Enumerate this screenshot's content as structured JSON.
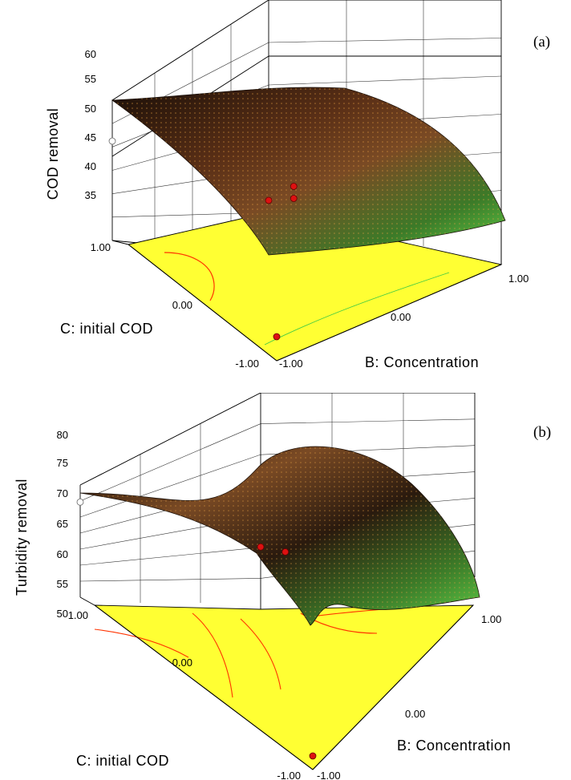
{
  "charts": [
    {
      "panel_label": "(a)",
      "zlabel": "COD removal",
      "xlabel": "B: Concentration",
      "ylabel": "C: initial COD",
      "z_ticks": [
        "60",
        "55",
        "50",
        "45",
        "40",
        "35"
      ],
      "x_ticks": [
        "-1.00",
        "0.00",
        "1.00"
      ],
      "y_ticks": [
        "1.00",
        "0.00",
        "-1.00"
      ]
    },
    {
      "panel_label": "(b)",
      "zlabel": "Turbidity removal",
      "xlabel": "B: Concentration",
      "ylabel": "C: initial COD",
      "z_ticks": [
        "80",
        "75",
        "70",
        "65",
        "60",
        "55",
        "50"
      ],
      "x_ticks": [
        "-1.00",
        "0.00",
        "1.00"
      ],
      "y_ticks": [
        "1.00",
        "0.00",
        "-1.00"
      ]
    }
  ],
  "chart_data": [
    {
      "type": "surface",
      "x_var": "B: Concentration",
      "y_var": "C: initial COD",
      "z_var": "COD removal",
      "xlim": [
        -1,
        1
      ],
      "ylim": [
        -1,
        1
      ],
      "zlim": [
        30,
        60
      ],
      "x": [
        -1.0,
        -0.5,
        0.0,
        0.5,
        1.0
      ],
      "y": [
        -1.0,
        -0.5,
        0.0,
        0.5,
        1.0
      ],
      "z": [
        [
          51.5,
          51.0,
          50.5,
          49.5,
          48.5
        ],
        [
          49.5,
          49.0,
          48.5,
          47.5,
          46.0
        ],
        [
          46.5,
          45.5,
          45.0,
          44.0,
          42.5
        ],
        [
          41.5,
          41.0,
          40.5,
          39.5,
          38.0
        ],
        [
          36.0,
          35.5,
          35.0,
          34.0,
          32.5
        ]
      ],
      "design_points": [
        {
          "x": -1,
          "y": 1,
          "z": 51.5
        },
        {
          "x": 0,
          "y": 0,
          "z": 47.5
        },
        {
          "x": 0,
          "y": 0,
          "z": 45.0
        },
        {
          "x": 1,
          "y": 1,
          "z": 32.5
        },
        {
          "x": -1,
          "y": -1,
          "z": 35.0
        }
      ],
      "grid": true,
      "floor_color": "#ffff33",
      "contour_color": "#ff3300",
      "surface_colors": [
        "#1a0f08",
        "#8a4a26",
        "#3c7a28",
        "#5fd24a"
      ]
    },
    {
      "type": "surface",
      "x_var": "B: Concentration",
      "y_var": "C: initial COD",
      "z_var": "Turbidity removal",
      "xlim": [
        -1,
        1
      ],
      "ylim": [
        -1,
        1
      ],
      "zlim": [
        45,
        80
      ],
      "x": [
        -1.0,
        -0.5,
        0.0,
        0.5,
        1.0
      ],
      "y": [
        -1.0,
        -0.5,
        0.0,
        0.5,
        1.0
      ],
      "z": [
        [
          71.5,
          68.0,
          65.5,
          69.0,
          76.0
        ],
        [
          69.0,
          66.0,
          64.0,
          67.5,
          74.5
        ],
        [
          65.0,
          63.0,
          62.5,
          65.5,
          71.5
        ],
        [
          60.0,
          57.5,
          55.0,
          59.0,
          65.5
        ],
        [
          54.0,
          51.0,
          48.5,
          53.0,
          61.0
        ]
      ],
      "design_points": [
        {
          "x": -1,
          "y": 1,
          "z": 71.5
        },
        {
          "x": 0,
          "y": 0,
          "z": 69.5
        },
        {
          "x": 1,
          "y": 1,
          "z": 61.0
        },
        {
          "x": -1,
          "y": -1,
          "z": 48.5
        }
      ],
      "grid": true,
      "floor_color": "#ffff33",
      "contour_color": "#ff3300",
      "surface_colors": [
        "#1a0f08",
        "#8a4a26",
        "#3c7a28",
        "#5fd24a"
      ]
    }
  ]
}
